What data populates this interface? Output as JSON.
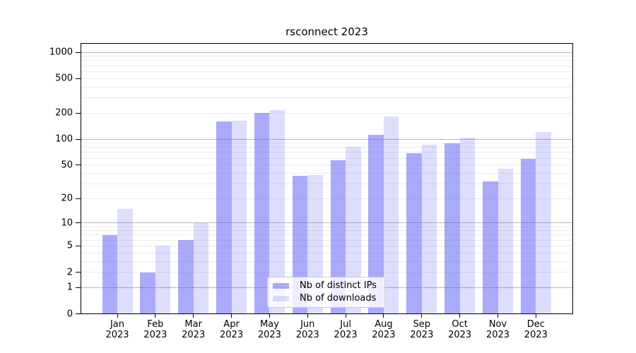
{
  "title": "rsconnect 2023",
  "chart_data": {
    "type": "bar",
    "title": "rsconnect 2023",
    "categories": [
      "Jan 2023",
      "Feb 2023",
      "Mar 2023",
      "Apr 2023",
      "May 2023",
      "Jun 2023",
      "Jul 2023",
      "Aug 2023",
      "Sep 2023",
      "Oct 2023",
      "Nov 2023",
      "Dec 2023"
    ],
    "series": [
      {
        "name": "Nb of distinct IPs",
        "color": "rgba(85,85,248,0.5)",
        "values": [
          7,
          2,
          6,
          160,
          200,
          37,
          57,
          113,
          68,
          89,
          32,
          59
        ]
      },
      {
        "name": "Nb of downloads",
        "color": "rgba(85,85,248,0.2)",
        "values": [
          15,
          5,
          10,
          162,
          215,
          38,
          82,
          184,
          86,
          104,
          45,
          120
        ]
      }
    ],
    "xlabel": "",
    "ylabel": "",
    "yscale": "log1p",
    "ylim": [
      0,
      1275
    ],
    "y_tick_values": [
      0,
      1,
      2,
      5,
      10,
      20,
      50,
      100,
      200,
      500,
      1000
    ],
    "y_tick_labels": [
      "0",
      "1",
      "2",
      "5",
      "10",
      "20",
      "50",
      "100",
      "200",
      "500",
      "1000"
    ],
    "y_major_gridlines": [
      1,
      10,
      100,
      1000
    ],
    "y_minor_gridlines": [
      2,
      3,
      4,
      5,
      6,
      7,
      8,
      9,
      20,
      30,
      40,
      50,
      60,
      70,
      80,
      90,
      200,
      300,
      400,
      500,
      600,
      700,
      800,
      900
    ],
    "grid": true,
    "legend_position": "lower center"
  },
  "legend": {
    "items": [
      {
        "label": "Nb of distinct IPs",
        "color": "rgba(85,85,248,0.5)"
      },
      {
        "label": "Nb of downloads",
        "color": "rgba(85,85,248,0.2)"
      }
    ]
  },
  "colors": {
    "bar_distinct_ips": "rgba(85,85,248,0.5)",
    "bar_downloads": "rgba(85,85,248,0.2)",
    "major_gridline": "#b8b8b8",
    "minor_gridline": "#ececec",
    "axis": "#000000",
    "background": "#ffffff",
    "legend_border": "#cccccc"
  }
}
